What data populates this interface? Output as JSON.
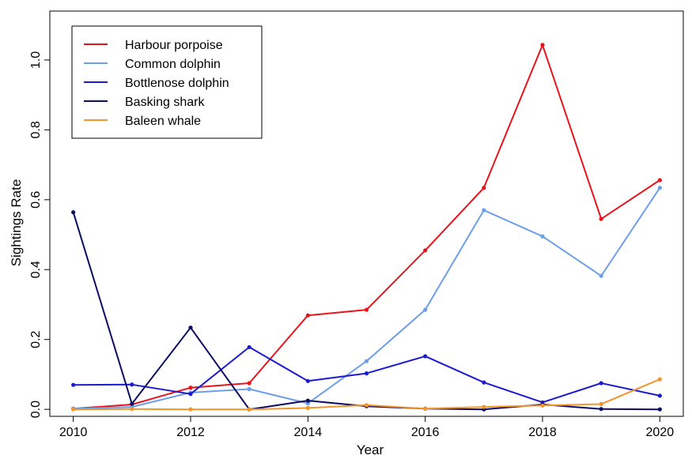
{
  "chart_data": {
    "type": "line",
    "title": "",
    "xlabel": "Year",
    "ylabel": "Sightings Rate",
    "x": [
      2010,
      2011,
      2012,
      2013,
      2014,
      2015,
      2016,
      2017,
      2018,
      2019,
      2020
    ],
    "xlim": [
      2009.6,
      2020.4
    ],
    "ylim": [
      -0.02,
      1.14
    ],
    "xticks": [
      "2010",
      "2012",
      "2014",
      "2016",
      "2018",
      "2020"
    ],
    "yticks": [
      "0.0",
      "0.2",
      "0.4",
      "0.6",
      "0.8",
      "1.0"
    ],
    "grid": false,
    "legend_position": "top-left",
    "series": [
      {
        "name": "Harbour porpoise",
        "color": "#e8141c",
        "values": [
          0.002,
          0.014,
          0.062,
          0.075,
          0.269,
          0.285,
          0.455,
          0.634,
          1.043,
          0.545,
          0.656
        ]
      },
      {
        "name": "Common dolphin",
        "color": "#6d9ee8",
        "values": [
          0.002,
          0.007,
          0.048,
          0.058,
          0.017,
          0.138,
          0.285,
          0.57,
          0.495,
          0.382,
          0.634
        ]
      },
      {
        "name": "Bottlenose dolphin",
        "color": "#1c1ccf",
        "values": [
          0.07,
          0.071,
          0.044,
          0.178,
          0.081,
          0.103,
          0.152,
          0.077,
          0.02,
          0.075,
          0.039
        ]
      },
      {
        "name": "Basking shark",
        "color": "#0d0d66",
        "values": [
          0.564,
          0.016,
          0.234,
          0.0,
          0.025,
          0.009,
          0.002,
          0.0,
          0.014,
          0.001,
          0.0
        ]
      },
      {
        "name": "Baleen whale",
        "color": "#f2962a",
        "values": [
          0.0,
          0.001,
          0.0,
          0.0,
          0.004,
          0.012,
          0.002,
          0.007,
          0.011,
          0.015,
          0.086
        ]
      }
    ]
  }
}
